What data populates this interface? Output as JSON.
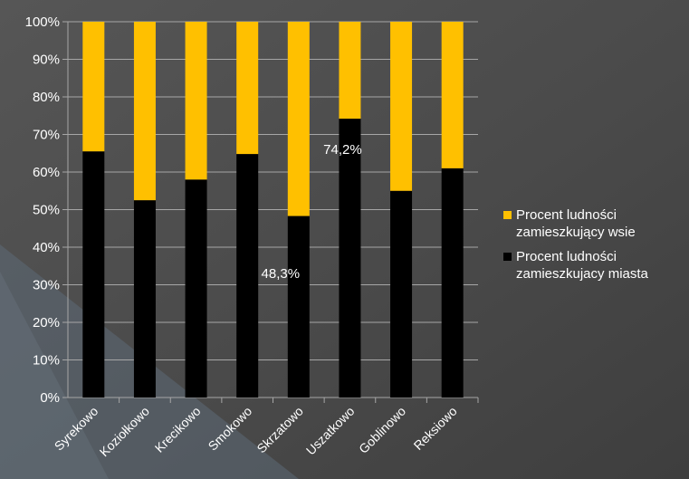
{
  "colors": {
    "rural": "#ffc000",
    "urban": "#000000",
    "background": "#4c4c4c"
  },
  "legend": {
    "rural_label": "Procent ludności\nzamieszkujący wsie",
    "urban_label": "Procent ludności\nzamieszkujacy miasta"
  },
  "chart_data": {
    "type": "bar",
    "stacked": true,
    "categories": [
      "Syrekowo",
      "Koziołkowo",
      "Krecikowo",
      "Smokowo",
      "Skrzatowo",
      "Uszatkowo",
      "Goblinowo",
      "Reksiowo"
    ],
    "series": [
      {
        "name": "Procent ludności zamieszkujacy miasta",
        "values": [
          65.5,
          52.5,
          58,
          64.8,
          48.3,
          74.2,
          55,
          61
        ]
      },
      {
        "name": "Procent ludności zamieszkujący wsie",
        "values": [
          34.5,
          47.5,
          42,
          35.2,
          51.7,
          25.8,
          45,
          39
        ]
      }
    ],
    "yticks": [
      "0%",
      "10%",
      "20%",
      "30%",
      "40%",
      "50%",
      "60%",
      "70%",
      "80%",
      "90%",
      "100%"
    ],
    "ylim": [
      0,
      100
    ],
    "data_labels": [
      {
        "category": "Skrzatowo",
        "text": "48,3%"
      },
      {
        "category": "Uszatkowo",
        "text": "74,2%"
      }
    ],
    "legend_position": "right",
    "grid": true
  }
}
